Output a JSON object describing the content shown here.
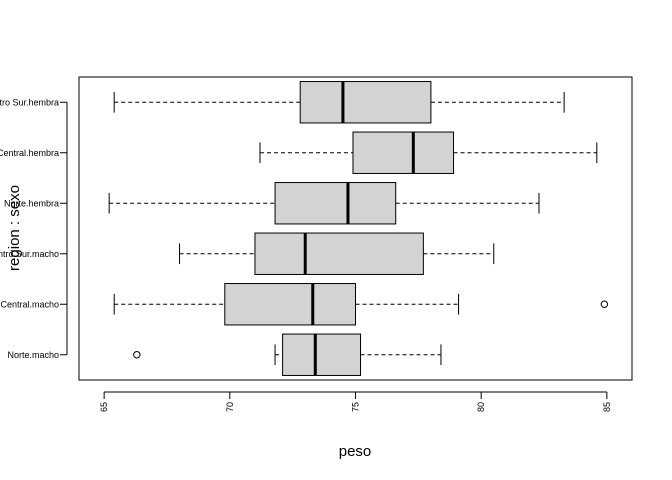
{
  "chart_data": {
    "type": "boxplot",
    "orientation": "horizontal",
    "xlabel": "peso",
    "ylabel": "region : sexo",
    "xlim": [
      64,
      86
    ],
    "xticks": [
      65,
      70,
      75,
      80,
      85
    ],
    "grid": false,
    "box_fill": "#d3d3d3",
    "categories": [
      "Norte.macho",
      "Centro Central.macho",
      "Centro Sur.macho",
      "Norte.hembra",
      "Centro Central.hembra",
      "Centro Sur.hembra"
    ],
    "boxes": [
      {
        "category": "Norte.macho",
        "whisker_low": 71.8,
        "q1": 72.1,
        "median": 73.4,
        "q3": 75.2,
        "whisker_high": 78.4,
        "outliers": [
          66.3
        ]
      },
      {
        "category": "Centro Central.macho",
        "whisker_low": 65.4,
        "q1": 69.8,
        "median": 73.3,
        "q3": 75.0,
        "whisker_high": 79.1,
        "outliers": [
          84.9
        ]
      },
      {
        "category": "Centro Sur.macho",
        "whisker_low": 68.0,
        "q1": 71.0,
        "median": 73.0,
        "q3": 77.7,
        "whisker_high": 80.5,
        "outliers": []
      },
      {
        "category": "Norte.hembra",
        "whisker_low": 65.2,
        "q1": 71.8,
        "median": 74.7,
        "q3": 76.6,
        "whisker_high": 82.3,
        "outliers": []
      },
      {
        "category": "Centro Central.hembra",
        "whisker_low": 71.2,
        "q1": 74.9,
        "median": 77.3,
        "q3": 78.9,
        "whisker_high": 84.6,
        "outliers": []
      },
      {
        "category": "Centro Sur.hembra",
        "whisker_low": 65.4,
        "q1": 72.8,
        "median": 74.5,
        "q3": 78.0,
        "whisker_high": 83.3,
        "outliers": []
      }
    ]
  }
}
